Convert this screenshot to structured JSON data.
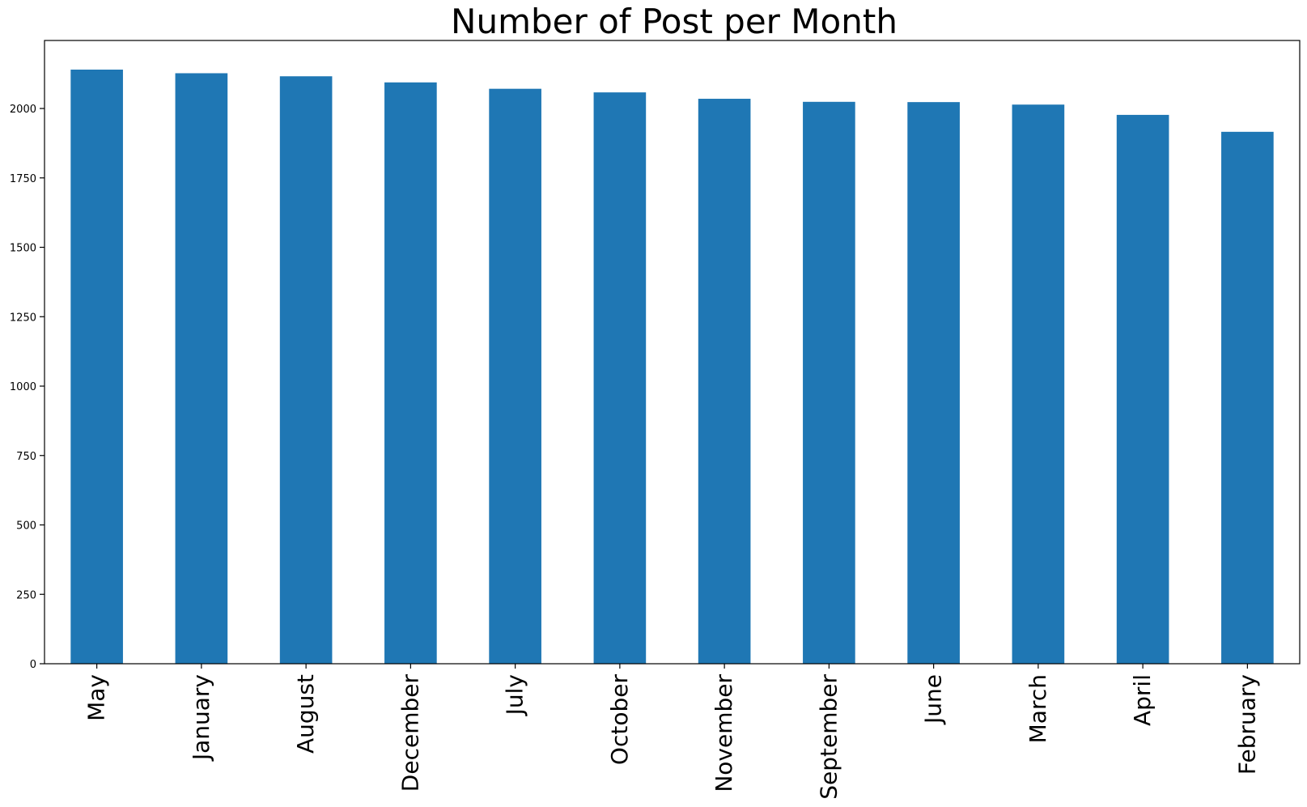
{
  "chart_data": {
    "type": "bar",
    "title": "Number of Post per Month",
    "xlabel": "",
    "ylabel": "",
    "categories": [
      "May",
      "January",
      "August",
      "December",
      "July",
      "October",
      "November",
      "September",
      "June",
      "March",
      "April",
      "February"
    ],
    "values": [
      2140,
      2127,
      2116,
      2094,
      2071,
      2058,
      2035,
      2024,
      2023,
      2014,
      1977,
      1916
    ],
    "ylim": [
      0,
      2245
    ],
    "yticks": [
      0,
      250,
      500,
      750,
      1000,
      1250,
      1500,
      1750,
      2000
    ],
    "grid": false,
    "legend": "none",
    "bar_color": "#1f77b4"
  }
}
